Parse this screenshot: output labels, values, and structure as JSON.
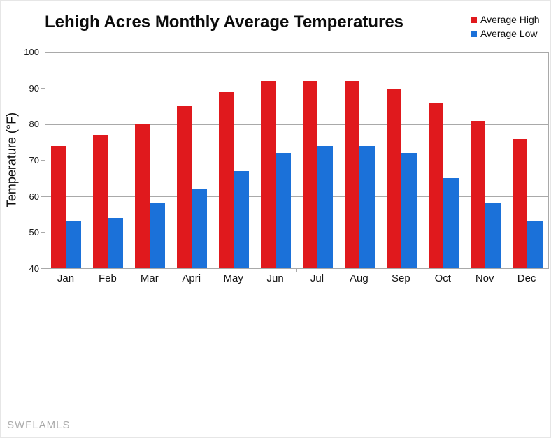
{
  "watermark": "SWFLAMLS",
  "chart_data": {
    "type": "bar",
    "title": "Lehigh Acres Monthly Average Temperatures",
    "xlabel": "",
    "ylabel": "Temperature (°F)",
    "ylim": [
      40,
      100
    ],
    "ytick_step": 10,
    "grid": true,
    "legend_position": "top-right",
    "categories": [
      "Jan",
      "Feb",
      "Mar",
      "Apri",
      "May",
      "Jun",
      "Jul",
      "Aug",
      "Sep",
      "Oct",
      "Nov",
      "Dec"
    ],
    "series": [
      {
        "name": "Average High",
        "color": "#e0191d",
        "values": [
          74,
          77,
          80,
          85,
          89,
          92,
          92,
          92,
          90,
          86,
          81,
          76
        ]
      },
      {
        "name": "Average Low",
        "color": "#1b71d9",
        "values": [
          53,
          54,
          58,
          62,
          67,
          72,
          74,
          74,
          72,
          65,
          58,
          53
        ]
      }
    ],
    "colors": {
      "gridline": "#a9a9a9",
      "watermark": "#ababab"
    }
  }
}
